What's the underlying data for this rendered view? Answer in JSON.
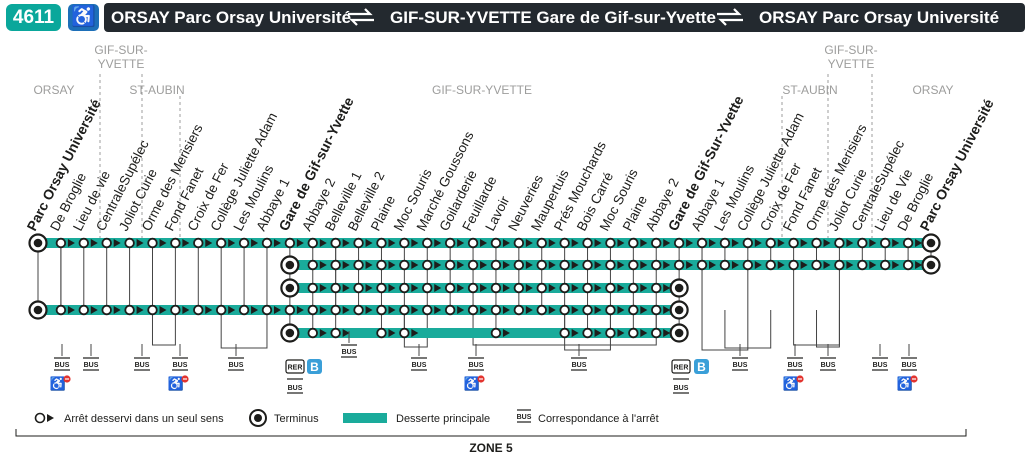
{
  "header": {
    "line_number": "4611",
    "accessibility_icon": "wheelchair-icon",
    "origin": "ORSAY Parc Orsay Université",
    "via": "GIF-SUR-YVETTE Gare de Gif-sur-Yvette",
    "destination": "ORSAY Parc Orsay Université",
    "colors": {
      "badge": "#0aa79b",
      "access": "#1d6fb8",
      "bar": "#23292f"
    }
  },
  "regions": {
    "orsay_left": "ORSAY",
    "gif_left_1": "GIF-SUR-",
    "gif_left_2": "YVETTE",
    "staubin_left": "ST-AUBIN",
    "gif_center": "GIF-SUR-YVETTE",
    "staubin_right": "ST-AUBIN",
    "gif_right_1": "GIF-SUR-",
    "gif_right_2": "YVETTE",
    "orsay_right": "ORSAY"
  },
  "stops": [
    {
      "name": "Parc Orsay Université",
      "terminus": true
    },
    {
      "name": "De Broglie",
      "terminus": false
    },
    {
      "name": "Lieu de vie",
      "terminus": false
    },
    {
      "name": "CentraleSupélec",
      "terminus": false
    },
    {
      "name": "Joliot Curie",
      "terminus": false
    },
    {
      "name": "Orme des Merisiers",
      "terminus": false
    },
    {
      "name": "Fond Fanet",
      "terminus": false
    },
    {
      "name": "Croix de Fer",
      "terminus": false
    },
    {
      "name": "Collège Juliette Adam",
      "terminus": false
    },
    {
      "name": "Les Moulins",
      "terminus": false
    },
    {
      "name": "Abbaye 1",
      "terminus": false
    },
    {
      "name": "Gare de Gif-sur-Yvette",
      "terminus": true
    },
    {
      "name": "Abbaye 2",
      "terminus": false
    },
    {
      "name": "Belleville 1",
      "terminus": false
    },
    {
      "name": "Belleville 2",
      "terminus": false
    },
    {
      "name": "Plaine",
      "terminus": false
    },
    {
      "name": "Moc Souris",
      "terminus": false
    },
    {
      "name": "Marché Goussons",
      "terminus": false
    },
    {
      "name": "Goilarderie",
      "terminus": false
    },
    {
      "name": "Feuillarde",
      "terminus": false
    },
    {
      "name": "Lavoir",
      "terminus": false
    },
    {
      "name": "Neuveries",
      "terminus": false
    },
    {
      "name": "Maupertuis",
      "terminus": false
    },
    {
      "name": "Prés Mouchards",
      "terminus": false
    },
    {
      "name": "Bois Carré",
      "terminus": false
    },
    {
      "name": "Moc Souris",
      "terminus": false
    },
    {
      "name": "Plaine",
      "terminus": false
    },
    {
      "name": "Abbaye 2",
      "terminus": false
    },
    {
      "name": "Gare de Gif-Sur-Yvette",
      "terminus": true
    },
    {
      "name": "Abbaye 1",
      "terminus": false
    },
    {
      "name": "Les Moulins",
      "terminus": false
    },
    {
      "name": "Collège Juliette Adam",
      "terminus": false
    },
    {
      "name": "Croix de Fer",
      "terminus": false
    },
    {
      "name": "Fond Fanet",
      "terminus": false
    },
    {
      "name": "Orme des Merisiers",
      "terminus": false
    },
    {
      "name": "Joliot Curie",
      "terminus": false
    },
    {
      "name": "CentraleSupélec",
      "terminus": false
    },
    {
      "name": "Lieu de Vie",
      "terminus": false
    },
    {
      "name": "De Broglie",
      "terminus": false
    },
    {
      "name": "Parc Orsay Université",
      "terminus": true
    }
  ],
  "bus_label": "BUS",
  "rer_label": "RER",
  "rer_line": "B",
  "legend": {
    "one_way": "Arrêt desservi dans un seul sens",
    "terminus": "Terminus",
    "main_service": "Desserte principale",
    "connection": "Correspondance à l'arrêt"
  },
  "zone": "ZONE 5",
  "colors": {
    "line": "#1aab9b",
    "rer": "#3a9fd8",
    "grey": "#9d9d9c",
    "text": "#1d1d1b"
  }
}
